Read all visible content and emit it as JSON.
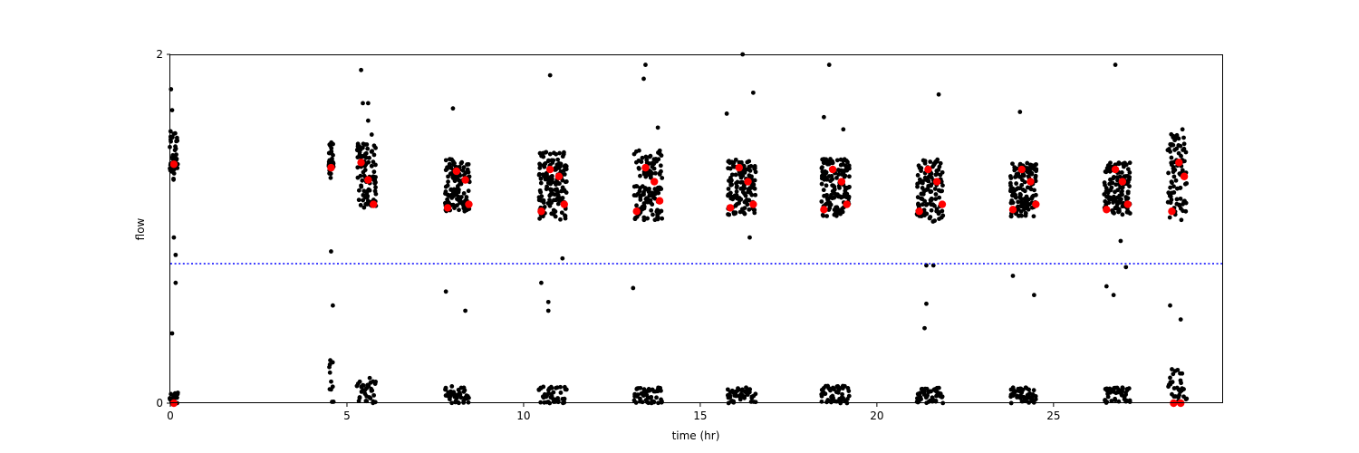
{
  "chart_data": {
    "type": "scatter",
    "xlabel": "time (hr)",
    "ylabel": "flow",
    "xlim": [
      0,
      29.8
    ],
    "ylim": [
      0,
      2
    ],
    "x_ticks": [
      0,
      5,
      10,
      15,
      20,
      25
    ],
    "y_ticks": [
      0,
      2
    ],
    "grid": false,
    "threshold": {
      "y": 0.8,
      "style": "dotted",
      "color": "#0000ff"
    },
    "colors": {
      "raw": "#000000",
      "highlight": "#ff0000",
      "threshold": "#0000ff"
    },
    "highlight_points": [
      {
        "x": 0.1,
        "y": 1.37
      },
      {
        "x": 0.1,
        "y": 0.0
      },
      {
        "x": 4.55,
        "y": 1.35
      },
      {
        "x": 5.4,
        "y": 1.38
      },
      {
        "x": 5.6,
        "y": 1.28
      },
      {
        "x": 5.75,
        "y": 1.14
      },
      {
        "x": 7.85,
        "y": 1.12
      },
      {
        "x": 8.1,
        "y": 1.33
      },
      {
        "x": 8.35,
        "y": 1.28
      },
      {
        "x": 8.45,
        "y": 1.14
      },
      {
        "x": 10.5,
        "y": 1.1
      },
      {
        "x": 10.75,
        "y": 1.34
      },
      {
        "x": 11.0,
        "y": 1.3
      },
      {
        "x": 11.15,
        "y": 1.14
      },
      {
        "x": 13.2,
        "y": 1.1
      },
      {
        "x": 13.45,
        "y": 1.35
      },
      {
        "x": 13.7,
        "y": 1.27
      },
      {
        "x": 13.85,
        "y": 1.16
      },
      {
        "x": 15.85,
        "y": 1.12
      },
      {
        "x": 16.1,
        "y": 1.35
      },
      {
        "x": 16.35,
        "y": 1.27
      },
      {
        "x": 16.5,
        "y": 1.14
      },
      {
        "x": 18.5,
        "y": 1.11
      },
      {
        "x": 18.75,
        "y": 1.34
      },
      {
        "x": 19.0,
        "y": 1.27
      },
      {
        "x": 19.15,
        "y": 1.14
      },
      {
        "x": 21.2,
        "y": 1.1
      },
      {
        "x": 21.45,
        "y": 1.34
      },
      {
        "x": 21.7,
        "y": 1.27
      },
      {
        "x": 21.85,
        "y": 1.14
      },
      {
        "x": 23.85,
        "y": 1.11
      },
      {
        "x": 24.1,
        "y": 1.34
      },
      {
        "x": 24.35,
        "y": 1.27
      },
      {
        "x": 24.5,
        "y": 1.14
      },
      {
        "x": 26.5,
        "y": 1.11
      },
      {
        "x": 26.75,
        "y": 1.34
      },
      {
        "x": 26.95,
        "y": 1.27
      },
      {
        "x": 27.1,
        "y": 1.14
      },
      {
        "x": 28.35,
        "y": 1.1
      },
      {
        "x": 28.55,
        "y": 1.38
      },
      {
        "x": 28.7,
        "y": 1.3
      },
      {
        "x": 28.4,
        "y": 0.0
      },
      {
        "x": 28.6,
        "y": 0.0
      }
    ],
    "outliers": [
      {
        "x": 0.02,
        "y": 1.8
      },
      {
        "x": 0.05,
        "y": 1.68
      },
      {
        "x": 0.05,
        "y": 0.4
      },
      {
        "x": 0.1,
        "y": 0.95
      },
      {
        "x": 0.15,
        "y": 0.85
      },
      {
        "x": 0.15,
        "y": 0.69
      },
      {
        "x": 4.55,
        "y": 0.87
      },
      {
        "x": 4.6,
        "y": 0.56
      },
      {
        "x": 5.4,
        "y": 1.91
      },
      {
        "x": 5.45,
        "y": 1.72
      },
      {
        "x": 5.6,
        "y": 1.72
      },
      {
        "x": 5.6,
        "y": 1.62
      },
      {
        "x": 5.7,
        "y": 1.54
      },
      {
        "x": 7.8,
        "y": 0.64
      },
      {
        "x": 8.0,
        "y": 1.69
      },
      {
        "x": 8.35,
        "y": 0.53
      },
      {
        "x": 10.5,
        "y": 0.69
      },
      {
        "x": 10.7,
        "y": 0.53
      },
      {
        "x": 10.75,
        "y": 1.88
      },
      {
        "x": 10.7,
        "y": 0.58
      },
      {
        "x": 11.1,
        "y": 0.83
      },
      {
        "x": 13.1,
        "y": 0.66
      },
      {
        "x": 13.45,
        "y": 1.94
      },
      {
        "x": 13.4,
        "y": 1.86
      },
      {
        "x": 13.8,
        "y": 1.58
      },
      {
        "x": 15.75,
        "y": 1.66
      },
      {
        "x": 16.2,
        "y": 2.0
      },
      {
        "x": 16.4,
        "y": 0.95
      },
      {
        "x": 16.5,
        "y": 1.78
      },
      {
        "x": 18.5,
        "y": 1.64
      },
      {
        "x": 18.65,
        "y": 1.94
      },
      {
        "x": 19.05,
        "y": 1.57
      },
      {
        "x": 21.4,
        "y": 0.79
      },
      {
        "x": 21.6,
        "y": 0.79
      },
      {
        "x": 21.75,
        "y": 1.77
      },
      {
        "x": 21.4,
        "y": 0.57
      },
      {
        "x": 21.35,
        "y": 0.43
      },
      {
        "x": 23.85,
        "y": 0.73
      },
      {
        "x": 24.05,
        "y": 1.67
      },
      {
        "x": 24.45,
        "y": 0.62
      },
      {
        "x": 26.5,
        "y": 0.67
      },
      {
        "x": 26.7,
        "y": 0.62
      },
      {
        "x": 26.75,
        "y": 1.94
      },
      {
        "x": 26.9,
        "y": 0.93
      },
      {
        "x": 27.05,
        "y": 0.78
      },
      {
        "x": 28.3,
        "y": 0.56
      },
      {
        "x": 28.6,
        "y": 0.48
      },
      {
        "x": 28.65,
        "y": 1.57
      }
    ],
    "bursts": [
      {
        "x0": 0.0,
        "x1": 0.2,
        "ymin": 1.28,
        "ymax": 1.56,
        "lowmax": 0.06
      },
      {
        "x0": 4.5,
        "x1": 4.6,
        "ymin": 1.29,
        "ymax": 1.5,
        "lowmax": 0.25
      },
      {
        "x0": 5.3,
        "x1": 5.8,
        "ymin": 1.12,
        "ymax": 1.49,
        "lowmax": 0.15
      },
      {
        "x0": 7.8,
        "x1": 8.45,
        "ymin": 1.1,
        "ymax": 1.4,
        "lowmax": 0.1
      },
      {
        "x0": 10.45,
        "x1": 11.2,
        "ymin": 1.05,
        "ymax": 1.45,
        "lowmax": 0.1
      },
      {
        "x0": 13.15,
        "x1": 13.9,
        "ymin": 1.05,
        "ymax": 1.45,
        "lowmax": 0.09
      },
      {
        "x0": 15.8,
        "x1": 16.55,
        "ymin": 1.08,
        "ymax": 1.4,
        "lowmax": 0.09
      },
      {
        "x0": 18.45,
        "x1": 19.2,
        "ymin": 1.07,
        "ymax": 1.4,
        "lowmax": 0.1
      },
      {
        "x0": 21.15,
        "x1": 21.85,
        "ymin": 1.04,
        "ymax": 1.4,
        "lowmax": 0.09
      },
      {
        "x0": 23.8,
        "x1": 24.5,
        "ymin": 1.07,
        "ymax": 1.38,
        "lowmax": 0.09
      },
      {
        "x0": 26.45,
        "x1": 27.15,
        "ymin": 1.08,
        "ymax": 1.38,
        "lowmax": 0.09
      },
      {
        "x0": 28.25,
        "x1": 28.75,
        "ymin": 1.05,
        "ymax": 1.55,
        "lowmax": 0.2
      }
    ]
  }
}
